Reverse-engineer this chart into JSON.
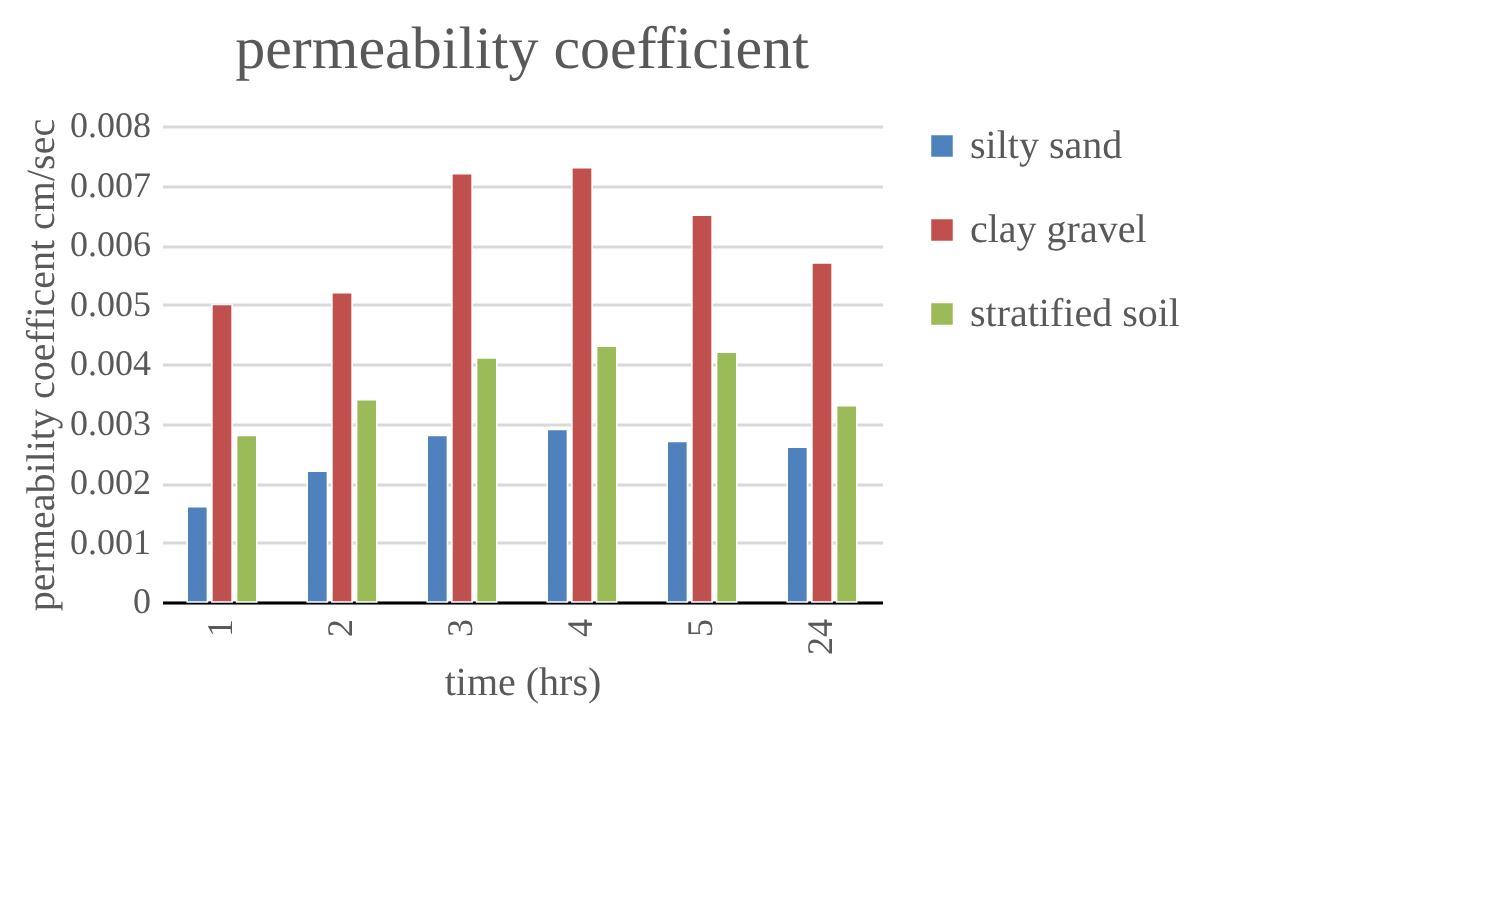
{
  "chart_data": {
    "type": "bar",
    "title": "permeability coefficient",
    "xlabel": "time (hrs)",
    "ylabel": "permeability coefficent  cm/sec",
    "categories": [
      "1",
      "2",
      "3",
      "4",
      "5",
      "24"
    ],
    "series": [
      {
        "name": "silty sand",
        "color": "#4f81bd",
        "values": [
          0.0016,
          0.0022,
          0.0028,
          0.0029,
          0.0027,
          0.0026
        ]
      },
      {
        "name": "clay gravel",
        "color": "#c0504d",
        "values": [
          0.005,
          0.0052,
          0.0072,
          0.0073,
          0.0065,
          0.0057
        ]
      },
      {
        "name": "stratified soil",
        "color": "#9bbb59",
        "values": [
          0.0028,
          0.0034,
          0.0041,
          0.0043,
          0.0042,
          0.0033
        ]
      }
    ],
    "ylim": [
      0,
      0.008
    ],
    "yticks": [
      0,
      0.001,
      0.002,
      0.003,
      0.004,
      0.005,
      0.006,
      0.007,
      0.008
    ],
    "grid": "y",
    "legend": "right"
  }
}
